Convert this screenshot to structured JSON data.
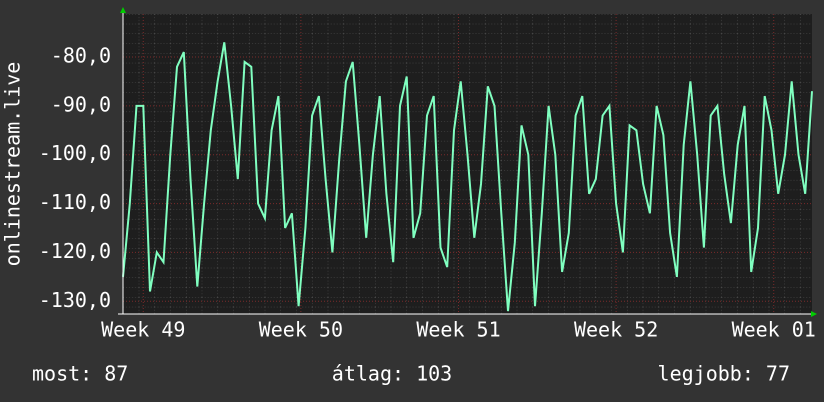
{
  "chart_data": {
    "type": "line",
    "ylabel": "onlinestream.live",
    "x": [
      0,
      0.3,
      0.6,
      0.9,
      1.2,
      1.5,
      1.8,
      2.1,
      2.4,
      2.7,
      3,
      3.3,
      3.6,
      3.9,
      4.2,
      4.5,
      4.8,
      5.1,
      5.4,
      5.7,
      6,
      6.3,
      6.6,
      6.9,
      7.2,
      7.5,
      7.8,
      8.1,
      8.4,
      8.7,
      9,
      9.3,
      9.6,
      9.9,
      10.2,
      10.5,
      10.8,
      11.1,
      11.4,
      11.7,
      12,
      12.3,
      12.6,
      12.9,
      13.2,
      13.5,
      13.8,
      14.1,
      14.4,
      14.7,
      15,
      15.3,
      15.6,
      15.9,
      16.2,
      16.5,
      16.8,
      17.1,
      17.4,
      17.7,
      18,
      18.3,
      18.6,
      18.9,
      19.2,
      19.5,
      19.8,
      20.1,
      20.4,
      20.7,
      21,
      21.3,
      21.6,
      21.9,
      22.2,
      22.5,
      22.8,
      23.1,
      23.4,
      23.7,
      24,
      24.3,
      24.6,
      24.9,
      25.2,
      25.5,
      25.8,
      26.1,
      26.4,
      26.7,
      27,
      27.3,
      27.6,
      27.9,
      28.2,
      28.5,
      28.8,
      29.1,
      29.4,
      29.7,
      30,
      30.3,
      30.6
    ],
    "series": [
      {
        "color": "#80ffc0",
        "values": [
          -125,
          -110,
          -90,
          -90,
          -128,
          -120,
          -122,
          -100,
          -82,
          -79,
          -105,
          -127,
          -110,
          -95,
          -85,
          -77,
          -90,
          -105,
          -81,
          -82,
          -110,
          -113,
          -95,
          -88,
          -115,
          -112,
          -131,
          -115,
          -92,
          -88,
          -105,
          -120,
          -101,
          -85,
          -81,
          -98,
          -117,
          -100,
          -88,
          -108,
          -122,
          -90,
          -84,
          -117,
          -112,
          -92,
          -88,
          -119,
          -123,
          -95,
          -85,
          -100,
          -117,
          -106,
          -86,
          -90,
          -112,
          -132,
          -118,
          -94,
          -100,
          -131,
          -112,
          -90,
          -100,
          -124,
          -116,
          -92,
          -88,
          -108,
          -105,
          -92,
          -90,
          -110,
          -120,
          -94,
          -95,
          -106,
          -112,
          -90,
          -96,
          -116,
          -125,
          -98,
          -85,
          -100,
          -119,
          -92,
          -90,
          -104,
          -114,
          -98,
          -90,
          -124,
          -115,
          -88,
          -95,
          -108,
          -100,
          -85,
          -100,
          -108,
          -87
        ]
      }
    ],
    "xlim": [
      0,
      30.6
    ],
    "xticks": [
      {
        "value": 0.9,
        "label": "Week 49"
      },
      {
        "value": 7.9,
        "label": "Week 50"
      },
      {
        "value": 14.9,
        "label": "Week 51"
      },
      {
        "value": 21.9,
        "label": "Week 52"
      },
      {
        "value": 28.9,
        "label": "Week 01"
      }
    ],
    "ylim": [
      -132.6,
      -71.2
    ],
    "yticks": [
      {
        "value": -80,
        "label": "-80,0"
      },
      {
        "value": -90,
        "label": "-90,0"
      },
      {
        "value": -100,
        "label": "-100,0"
      },
      {
        "value": -110,
        "label": "-110,0"
      },
      {
        "value": -120,
        "label": "-120,0"
      },
      {
        "value": -130,
        "label": "-130,0"
      }
    ],
    "grid": true,
    "footer": {
      "current": "most: 87",
      "average": "átlag: 103",
      "best": "legjobb: 77"
    }
  }
}
